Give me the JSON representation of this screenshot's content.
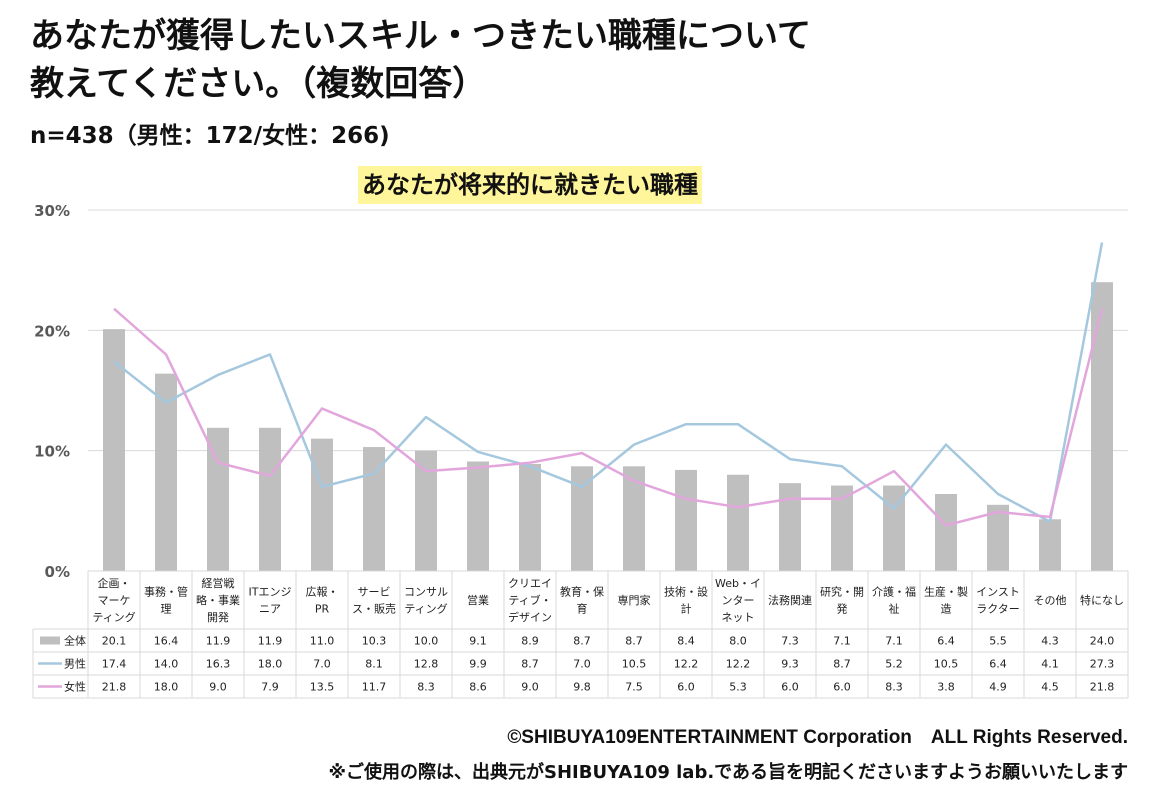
{
  "header": {
    "title_line1": "あなたが獲得したいスキル・つきたい職種について",
    "title_line2": "教えてください。（複数回答）",
    "sample": "n=438（男性：172/女性：266)"
  },
  "colors": {
    "bar": "#bfbfbf",
    "male_line": "#a5c8de",
    "female_line": "#e2a6dc",
    "grid": "#d9d9d9",
    "highlight": "#fff59b"
  },
  "footer": {
    "copyright": "©SHIBUYA109ENTERTAINMENT Corporation　ALL Rights Reserved.",
    "note": "※ご使用の際は、出典元がSHIBUYA109 lab.である旨を明記くださいますようお願いいたします"
  },
  "chart_data": {
    "type": "bar",
    "title": "あなたが将来的に就きたい職種",
    "ylim": [
      0,
      30
    ],
    "yticks": [
      "0%",
      "10%",
      "20%",
      "30%"
    ],
    "categories": [
      [
        "企画・",
        "マーケ",
        "ティング"
      ],
      [
        "事務・管",
        "理"
      ],
      [
        "経営戦",
        "略・事業",
        "開発"
      ],
      [
        "ITエンジ",
        "ニア"
      ],
      [
        "広報・",
        "PR"
      ],
      [
        "サービ",
        "ス・販売"
      ],
      [
        "コンサル",
        "ティング"
      ],
      [
        "営業"
      ],
      [
        "クリエイ",
        "ティブ・",
        "デザイン"
      ],
      [
        "教育・保",
        "育"
      ],
      [
        "専門家"
      ],
      [
        "技術・設",
        "計"
      ],
      [
        "Web・イ",
        "ンター",
        "ネット"
      ],
      [
        "法務関連"
      ],
      [
        "研究・開",
        "発"
      ],
      [
        "介護・福",
        "祉"
      ],
      [
        "生産・製",
        "造"
      ],
      [
        "インスト",
        "ラクター"
      ],
      [
        "その他"
      ],
      [
        "特になし"
      ]
    ],
    "series": [
      {
        "name": "全体",
        "type": "bar",
        "values": [
          20.1,
          16.4,
          11.9,
          11.9,
          11.0,
          10.3,
          10.0,
          9.1,
          8.9,
          8.7,
          8.7,
          8.4,
          8.0,
          7.3,
          7.1,
          7.1,
          6.4,
          5.5,
          4.3,
          24.0
        ]
      },
      {
        "name": "男性",
        "type": "line",
        "values": [
          17.4,
          14.0,
          16.3,
          18.0,
          7.0,
          8.1,
          12.8,
          9.9,
          8.7,
          7.0,
          10.5,
          12.2,
          12.2,
          9.3,
          8.7,
          5.2,
          10.5,
          6.4,
          4.1,
          27.3
        ]
      },
      {
        "name": "女性",
        "type": "line",
        "values": [
          21.8,
          18.0,
          9.0,
          7.9,
          13.5,
          11.7,
          8.3,
          8.6,
          9.0,
          9.8,
          7.5,
          6.0,
          5.3,
          6.0,
          6.0,
          8.3,
          3.8,
          4.9,
          4.5,
          21.8
        ]
      }
    ],
    "display_values": [
      [
        "20.1",
        "16.4",
        "11.9",
        "11.9",
        "11.0",
        "10.3",
        "10.0",
        "9.1",
        "8.9",
        "8.7",
        "8.7",
        "8.4",
        "8.0",
        "7.3",
        "7.1",
        "7.1",
        "6.4",
        "5.5",
        "4.3",
        "24.0"
      ],
      [
        "17.4",
        "14.0",
        "16.3",
        "18.0",
        "7.0",
        "8.1",
        "12.8",
        "9.9",
        "8.7",
        "7.0",
        "10.5",
        "12.2",
        "12.2",
        "9.3",
        "8.7",
        "5.2",
        "10.5",
        "6.4",
        "4.1",
        "27.3"
      ],
      [
        "21.8",
        "18.0",
        "9.0",
        "7.9",
        "13.5",
        "11.7",
        "8.3",
        "8.6",
        "9.0",
        "9.8",
        "7.5",
        "6.0",
        "5.3",
        "6.0",
        "6.0",
        "8.3",
        "3.8",
        "4.9",
        "4.5",
        "21.8"
      ]
    ],
    "grid": true,
    "legend": "data-table"
  }
}
